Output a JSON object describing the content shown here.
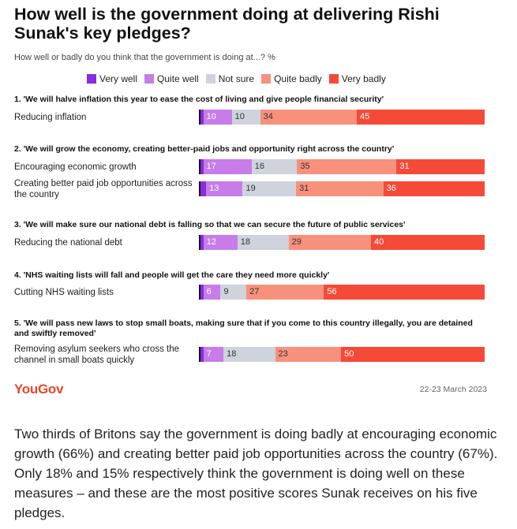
{
  "header": {
    "title": "How well is the government doing at delivering Rishi Sunak's key pledges?",
    "subtitle": "How well or badly do you think that the government is doing at...? %"
  },
  "colors": {
    "very_well": "#8a2be2",
    "quite_well": "#c77ce8",
    "not_sure": "#cfd3dc",
    "quite_badly": "#f7917c",
    "very_badly": "#f64a38"
  },
  "chart_data": {
    "type": "bar",
    "orientation": "horizontal",
    "stacked": true,
    "legend_position": "top",
    "legend": [
      "Very well",
      "Quite well",
      "Not sure",
      "Quite badly",
      "Very badly"
    ],
    "sections": [
      {
        "title": "1. 'We will halve inflation this year to ease the cost of living and give people financial security'",
        "rows": [
          {
            "label": "Reducing inflation",
            "very_well": 1,
            "quite_well": 10,
            "not_sure": 10,
            "quite_badly": 34,
            "very_badly": 45
          }
        ]
      },
      {
        "title": "2. 'We will grow the economy, creating better-paid jobs and opportunity right across the country'",
        "rows": [
          {
            "label": "Encouraging economic growth",
            "very_well": 1,
            "quite_well": 17,
            "not_sure": 16,
            "quite_badly": 35,
            "very_badly": 31
          },
          {
            "label": "Creating better paid job opportunities across the country",
            "very_well": 2,
            "quite_well": 13,
            "not_sure": 19,
            "quite_badly": 31,
            "very_badly": 36
          }
        ]
      },
      {
        "title": "3. 'We will make sure our national debt is falling so that we can secure the future of public services'",
        "rows": [
          {
            "label": "Reducing the national debt",
            "very_well": 1,
            "quite_well": 12,
            "not_sure": 18,
            "quite_badly": 29,
            "very_badly": 40
          }
        ]
      },
      {
        "title": "4. 'NHS waiting lists will fall and people will get the care they need more quickly'",
        "rows": [
          {
            "label": "Cutting NHS waiting lists",
            "very_well": 1,
            "quite_well": 6,
            "not_sure": 9,
            "quite_badly": 27,
            "very_badly": 56
          }
        ]
      },
      {
        "title": "5. 'We will pass new laws to stop small boats, making sure that if you come to this country illegally, you are detained and swiftly removed'",
        "rows": [
          {
            "label": "Removing asylum seekers who cross the channel in small boats quickly",
            "very_well": 1,
            "quite_well": 7,
            "not_sure": 18,
            "quite_badly": 23,
            "very_badly": 50
          }
        ]
      }
    ]
  },
  "footer": {
    "logo": "YouGov",
    "date": "22-23 March 2023"
  },
  "body_text": "Two thirds of Britons say the government is doing badly at encouraging economic growth (66%) and creating better paid job opportunities across the country (67%). Only 18% and 15% respectively think the government is doing well on these measures – and these are the most positive scores Sunak receives on his five pledges."
}
